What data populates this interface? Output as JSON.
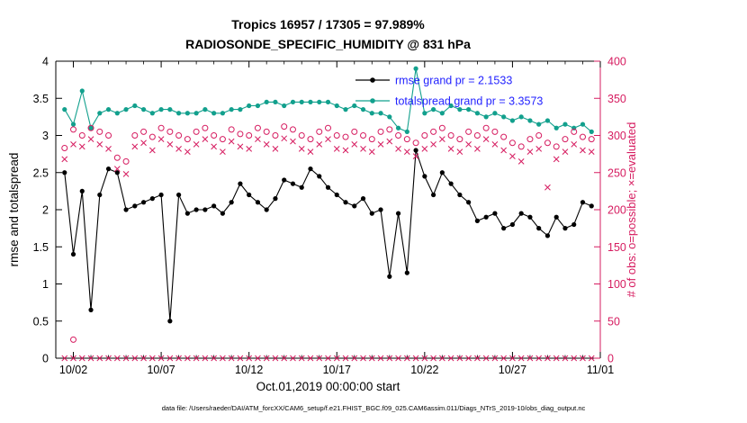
{
  "title_line1": "Tropics 16957 / 17305 = 97.989%",
  "title_line2": "RADIOSONDE_SPECIFIC_HUMIDITY @ 831 hPa",
  "caption": "data file: /Users/raeder/DAI/ATM_forcXX/CAM6_setup/f.e21.FHIST_BGC.f09_025.CAM6assim.011/Diags_NTrS_2019-10/obs_diag_output.nc",
  "chart_data": {
    "type": "line",
    "title": "Tropics 16957 / 17305 = 97.989% — RADIOSONDE_SPECIFIC_HUMIDITY @ 831 hPa",
    "xlabel": "Oct.01,2019 00:00:00 start",
    "ylabel_left": "rmse and totalspread",
    "ylabel_right": "# of obs: o=possible; ×=evaluated",
    "n_points": 61,
    "x_start": 0.5,
    "x_step": 0.5,
    "x_axis": {
      "min": 0,
      "max": 31,
      "minor_tick_step": 1,
      "major_tick_days": [
        1,
        6,
        11,
        16,
        21,
        26,
        31
      ],
      "major_tick_labels": [
        "10/02",
        "10/07",
        "10/12",
        "10/17",
        "10/22",
        "10/27",
        "11/01"
      ]
    },
    "y_left": {
      "min": 0,
      "max": 4,
      "ticks": [
        0,
        0.5,
        1,
        1.5,
        2,
        2.5,
        3,
        3.5,
        4
      ],
      "tick_labels": [
        "0",
        "0.5",
        "1",
        "1.5",
        "2",
        "2.5",
        "3",
        "3.5",
        "4"
      ]
    },
    "y_right": {
      "min": 0,
      "max": 400,
      "ticks": [
        0,
        50,
        100,
        150,
        200,
        250,
        300,
        350,
        400
      ],
      "tick_labels": [
        "0",
        "50",
        "100",
        "150",
        "200",
        "250",
        "300",
        "350",
        "400"
      ]
    },
    "colors": {
      "axis": "#000000",
      "obs": "#d61c60",
      "legend_text": "#2222ff"
    },
    "legend": {
      "position": "upper-center",
      "entries": [
        "rmse grand pr = 2.1533",
        "totalspread grand pr = 3.3573"
      ]
    },
    "series": [
      {
        "name": "rmse",
        "legend": "rmse grand pr = 2.1533",
        "axis": "left",
        "color": "#000000",
        "marker": "dot",
        "line": true,
        "values": [
          2.5,
          1.4,
          2.25,
          0.65,
          2.2,
          2.55,
          2.5,
          2.0,
          2.05,
          2.1,
          2.15,
          2.2,
          0.5,
          2.2,
          1.95,
          2.0,
          2.0,
          2.05,
          1.95,
          2.1,
          2.35,
          2.2,
          2.1,
          2.0,
          2.15,
          2.4,
          2.35,
          2.3,
          2.55,
          2.45,
          2.3,
          2.2,
          2.1,
          2.05,
          2.15,
          1.95,
          2.0,
          1.1,
          1.95,
          1.15,
          2.8,
          2.45,
          2.2,
          2.5,
          2.35,
          2.2,
          2.1,
          1.85,
          1.9,
          1.95,
          1.75,
          1.8,
          1.95,
          1.9,
          1.75,
          1.65,
          1.9,
          1.75,
          1.8,
          2.1,
          2.05
        ]
      },
      {
        "name": "totalspread",
        "legend": "totalspread grand pr = 3.3573",
        "axis": "left",
        "color": "#12a08d",
        "marker": "dot",
        "line": true,
        "values": [
          3.35,
          3.15,
          3.6,
          3.1,
          3.3,
          3.35,
          3.3,
          3.35,
          3.4,
          3.35,
          3.3,
          3.35,
          3.35,
          3.3,
          3.3,
          3.3,
          3.35,
          3.3,
          3.3,
          3.35,
          3.35,
          3.4,
          3.4,
          3.45,
          3.45,
          3.4,
          3.45,
          3.45,
          3.45,
          3.45,
          3.45,
          3.4,
          3.35,
          3.4,
          3.35,
          3.3,
          3.3,
          3.25,
          3.1,
          3.05,
          3.9,
          3.3,
          3.35,
          3.3,
          3.4,
          3.35,
          3.35,
          3.3,
          3.25,
          3.3,
          3.25,
          3.2,
          3.25,
          3.2,
          3.15,
          3.2,
          3.1,
          3.15,
          3.1,
          3.15,
          3.05
        ]
      },
      {
        "name": "obs-possible",
        "axis": "right",
        "color": "#d61c60",
        "marker": "circle",
        "line": false,
        "values": [
          283,
          308,
          300,
          310,
          305,
          300,
          270,
          265,
          300,
          305,
          298,
          310,
          305,
          300,
          295,
          305,
          310,
          300,
          295,
          308,
          302,
          300,
          310,
          305,
          300,
          312,
          308,
          300,
          295,
          305,
          310,
          300,
          298,
          305,
          300,
          295,
          305,
          308,
          300,
          295,
          290,
          300,
          305,
          310,
          300,
          295,
          305,
          300,
          310,
          305,
          298,
          290,
          285,
          295,
          300,
          290,
          285,
          295,
          305,
          298,
          295
        ]
      },
      {
        "name": "obs-evaluated",
        "axis": "right",
        "color": "#d61c60",
        "marker": "x",
        "line": false,
        "values": [
          268,
          288,
          285,
          295,
          288,
          282,
          255,
          248,
          285,
          290,
          280,
          295,
          288,
          282,
          278,
          288,
          295,
          285,
          278,
          292,
          285,
          282,
          295,
          288,
          282,
          296,
          292,
          282,
          278,
          288,
          295,
          282,
          280,
          288,
          282,
          278,
          288,
          292,
          282,
          278,
          272,
          282,
          288,
          295,
          282,
          278,
          288,
          282,
          295,
          288,
          280,
          272,
          265,
          278,
          282,
          230,
          268,
          278,
          288,
          280,
          278
        ]
      },
      {
        "name": "obs-baseline-zero",
        "axis": "right",
        "color": "#d61c60",
        "marker": "x",
        "line": false,
        "constant": 0
      },
      {
        "name": "obs-low-outlier",
        "axis": "right",
        "color": "#d61c60",
        "marker": "circle",
        "line": false,
        "points": [
          {
            "x": 1,
            "y": 25
          }
        ]
      }
    ]
  }
}
